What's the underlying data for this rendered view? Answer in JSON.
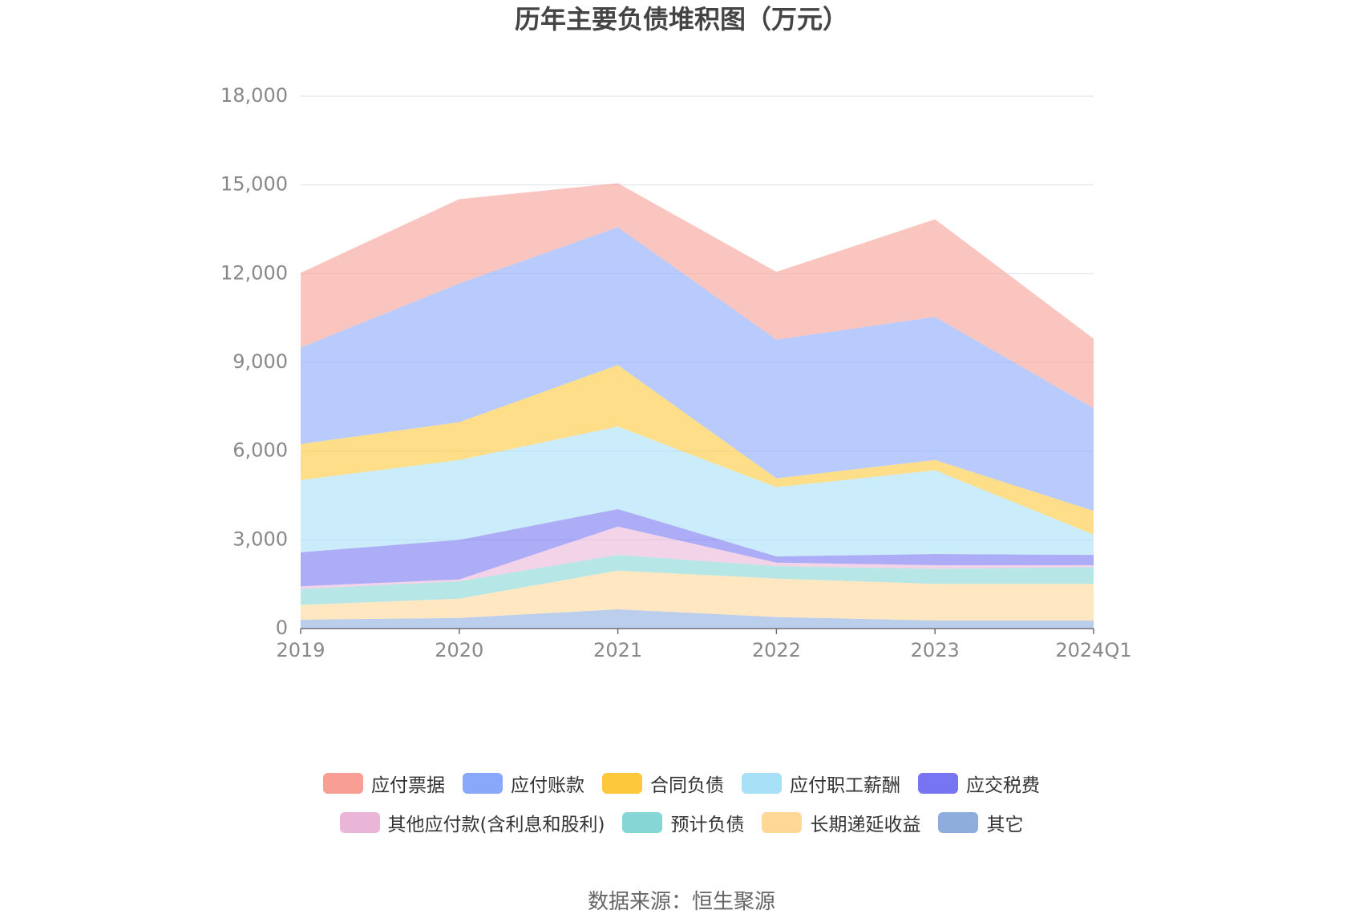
{
  "chart_data": {
    "type": "stacked-area",
    "title": "历年主要负债堆积图（万元）",
    "categories": [
      "2019",
      "2020",
      "2021",
      "2022",
      "2023",
      "2024Q1"
    ],
    "series": [
      {
        "name": "应付票据",
        "color": "#f99e94",
        "values": [
          2530,
          2850,
          1490,
          2290,
          3300,
          2350
        ]
      },
      {
        "name": "应付账款",
        "color": "#8aa8fa",
        "values": [
          3260,
          4690,
          4660,
          4690,
          4840,
          3470
        ]
      },
      {
        "name": "合同负债",
        "color": "#fdc83b",
        "values": [
          1220,
          1280,
          2080,
          300,
          350,
          800
        ]
      },
      {
        "name": "应付职工薪酬",
        "color": "#a8e0f8",
        "values": [
          2440,
          2700,
          2790,
          2340,
          2830,
          690
        ]
      },
      {
        "name": "应交税费",
        "color": "#7775f2",
        "values": [
          1150,
          1340,
          590,
          210,
          380,
          350
        ]
      },
      {
        "name": "其他应付款(含利息和股利)",
        "color": "#e9b5d9",
        "values": [
          90,
          60,
          960,
          120,
          120,
          60
        ]
      },
      {
        "name": "预计负债",
        "color": "#86d6d6",
        "values": [
          540,
          590,
          530,
          420,
          510,
          570
        ]
      },
      {
        "name": "长期递延收益",
        "color": "#ffd898",
        "values": [
          500,
          650,
          1310,
          1300,
          1240,
          1240
        ]
      },
      {
        "name": "其它",
        "color": "#8eaddd",
        "values": [
          300,
          360,
          650,
          390,
          270,
          270
        ]
      }
    ],
    "ylim": [
      0,
      18000
    ],
    "yticks": [
      0,
      {
        "value": 3000,
        "label": "3,000"
      },
      {
        "value": 6000,
        "label": "6,000"
      },
      {
        "value": 9000,
        "label": "9,000"
      },
      {
        "value": 12000,
        "label": "12,000"
      },
      {
        "value": 15000,
        "label": "15,000"
      },
      {
        "value": 18000,
        "label": "18,000"
      }
    ],
    "grid": true,
    "source": "数据来源：恒生聚源"
  }
}
